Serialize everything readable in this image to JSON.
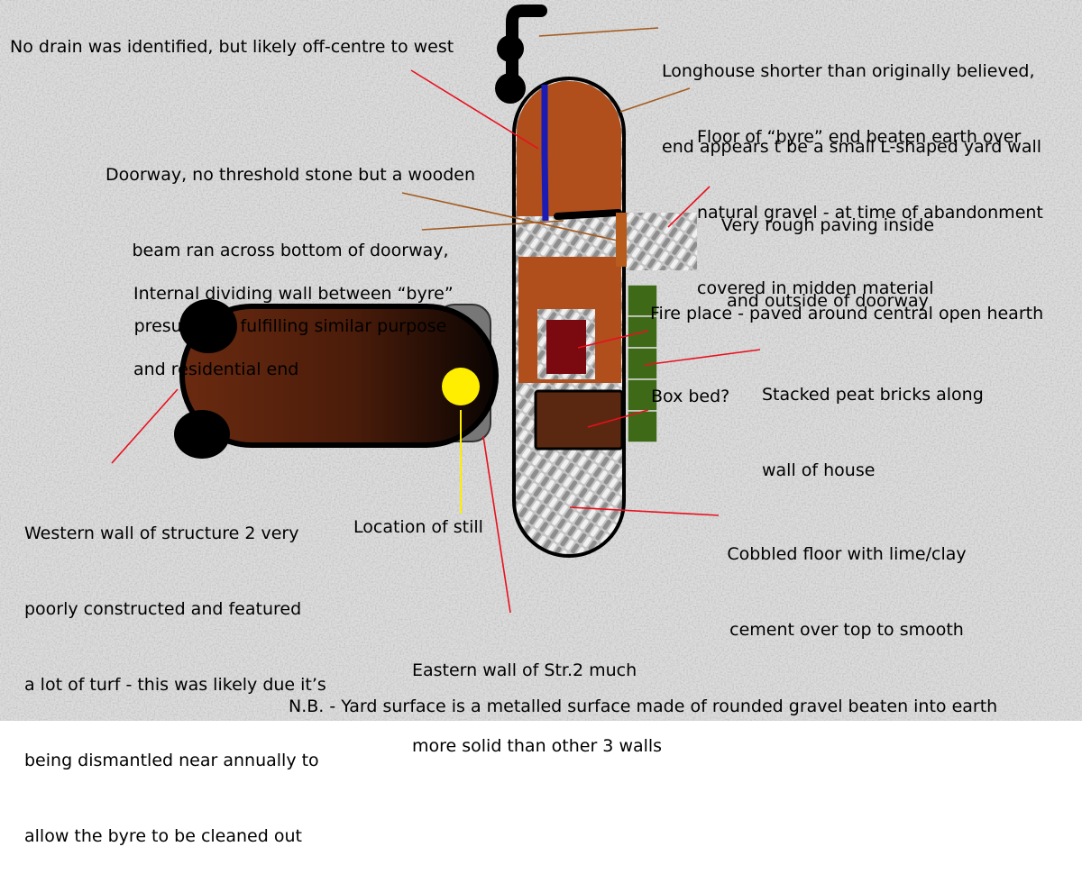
{
  "annotations": {
    "longhouse_end": [
      "Longhouse shorter than originally believed,",
      "end appears t be a small L-shaped yard wall"
    ],
    "no_drain": "No drain was identified, but likely off-centre to west",
    "byre_floor": [
      "Floor of “byre” end beaten earth over",
      "natural gravel - at time of abandonment",
      "covered in midden material"
    ],
    "doorway": [
      "Doorway, no threshold stone but a wooden",
      "beam ran across bottom of doorway,",
      "presumably fulfilling similar purpose"
    ],
    "rough_paving": [
      "Very rough paving inside",
      "and outside of doorway"
    ],
    "dividing_wall": [
      "Internal dividing wall between “byre”",
      "and residential end"
    ],
    "fire_place": "Fire place - paved around central open hearth",
    "peat_bricks": [
      "Stacked peat bricks along",
      "wall of house"
    ],
    "box_bed": "Box bed?",
    "western_wall": [
      "Western wall of structure 2 very",
      "poorly constructed and featured",
      "a lot of turf - this was likely due it’s",
      "being dismantled near annually to",
      "allow the byre to be cleaned out"
    ],
    "still": "Location of still",
    "cobbled_floor": [
      "Cobbled floor with lime/clay",
      "cement over top to smooth"
    ],
    "eastern_wall": [
      "Eastern wall of Str.2 much",
      "more solid than other 3 walls"
    ],
    "nb_note": "N.B. - Yard surface is a metalled surface made of rounded gravel beaten into earth"
  },
  "colors": {
    "background": "#d8d8d8",
    "byre_floor": "#b04e1c",
    "drain": "#1c1cb4",
    "leader_red": "#e8101e",
    "leader_brown": "#a35a1e",
    "leader_yellow": "#ffee00",
    "still": "#ffee00",
    "hearth": "#7a0a10",
    "box_bed": "#5a2810",
    "peat": "#3e6a18",
    "wall": "#000000"
  }
}
